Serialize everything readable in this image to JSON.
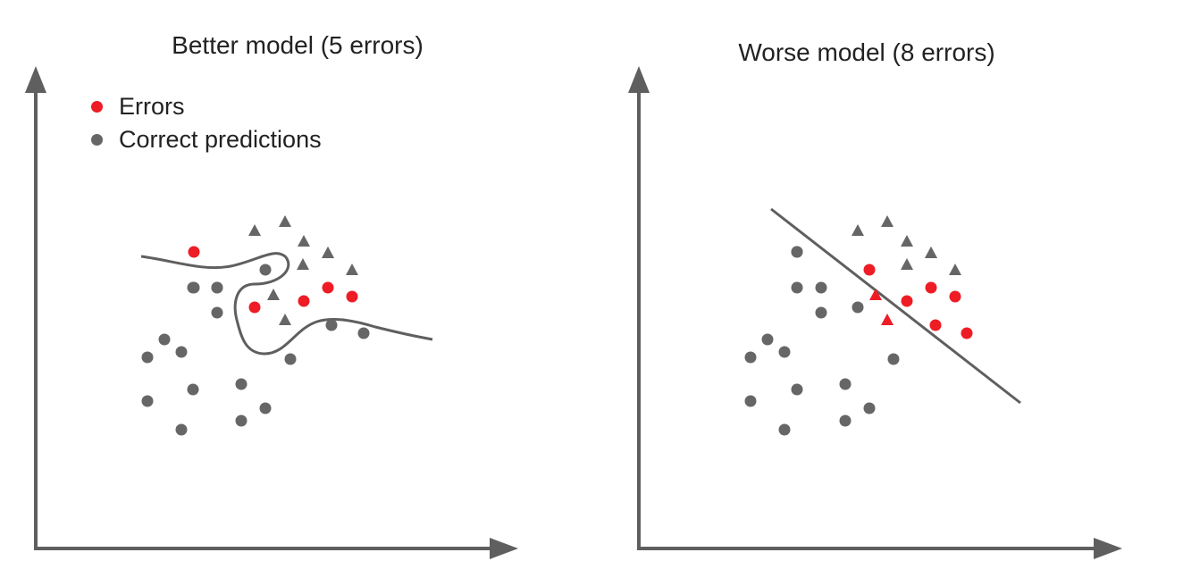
{
  "colors": {
    "axis": "#5f5f5f",
    "correct": "#666666",
    "error": "#ee1c25",
    "boundary": "#5f5f5f"
  },
  "legend": [
    {
      "label": "Errors",
      "color": "#ee1c25"
    },
    {
      "label": "Correct predictions",
      "color": "#666666"
    }
  ],
  "panels": [
    {
      "id": "better",
      "title": "Better model (5 errors)",
      "boundary": "curve",
      "points": [
        {
          "shape": "circle",
          "status": "correct"
        },
        {
          "shape": "circle",
          "status": "correct"
        },
        {
          "shape": "circle",
          "status": "correct"
        },
        {
          "shape": "circle",
          "status": "correct"
        },
        {
          "shape": "circle",
          "status": "correct"
        },
        {
          "shape": "circle",
          "status": "correct"
        },
        {
          "shape": "circle",
          "status": "correct"
        },
        {
          "shape": "circle",
          "status": "correct"
        },
        {
          "shape": "circle",
          "status": "correct"
        },
        {
          "shape": "circle",
          "status": "correct"
        },
        {
          "shape": "circle",
          "status": "correct"
        },
        {
          "shape": "circle",
          "status": "correct"
        },
        {
          "shape": "circle",
          "status": "correct"
        },
        {
          "shape": "circle",
          "status": "correct"
        },
        {
          "shape": "circle",
          "status": "correct"
        },
        {
          "shape": "circle",
          "status": "correct"
        },
        {
          "shape": "circle",
          "status": "correct"
        },
        {
          "shape": "circle",
          "status": "correct"
        },
        {
          "shape": "circle",
          "status": "error"
        },
        {
          "shape": "circle",
          "status": "error"
        },
        {
          "shape": "circle",
          "status": "error"
        },
        {
          "shape": "circle",
          "status": "error"
        },
        {
          "shape": "circle",
          "status": "error"
        },
        {
          "shape": "triangle",
          "status": "correct"
        },
        {
          "shape": "triangle",
          "status": "correct"
        },
        {
          "shape": "triangle",
          "status": "correct"
        },
        {
          "shape": "triangle",
          "status": "correct"
        },
        {
          "shape": "triangle",
          "status": "correct"
        },
        {
          "shape": "triangle",
          "status": "correct"
        },
        {
          "shape": "triangle",
          "status": "correct"
        },
        {
          "shape": "triangle",
          "status": "correct"
        },
        {
          "shape": "triangle",
          "status": "correct"
        }
      ]
    },
    {
      "id": "worse",
      "title": "Worse model (8 errors)",
      "boundary": "line",
      "points": [
        {
          "shape": "circle",
          "status": "correct"
        },
        {
          "shape": "circle",
          "status": "correct"
        },
        {
          "shape": "circle",
          "status": "correct"
        },
        {
          "shape": "circle",
          "status": "correct"
        },
        {
          "shape": "circle",
          "status": "correct"
        },
        {
          "shape": "circle",
          "status": "correct"
        },
        {
          "shape": "circle",
          "status": "correct"
        },
        {
          "shape": "circle",
          "status": "correct"
        },
        {
          "shape": "circle",
          "status": "correct"
        },
        {
          "shape": "circle",
          "status": "correct"
        },
        {
          "shape": "circle",
          "status": "correct"
        },
        {
          "shape": "circle",
          "status": "correct"
        },
        {
          "shape": "circle",
          "status": "correct"
        },
        {
          "shape": "circle",
          "status": "correct"
        },
        {
          "shape": "circle",
          "status": "correct"
        },
        {
          "shape": "circle",
          "status": "correct"
        },
        {
          "shape": "circle",
          "status": "error"
        },
        {
          "shape": "circle",
          "status": "error"
        },
        {
          "shape": "circle",
          "status": "error"
        },
        {
          "shape": "circle",
          "status": "error"
        },
        {
          "shape": "circle",
          "status": "error"
        },
        {
          "shape": "circle",
          "status": "error"
        },
        {
          "shape": "triangle",
          "status": "error"
        },
        {
          "shape": "triangle",
          "status": "error"
        },
        {
          "shape": "triangle",
          "status": "correct"
        },
        {
          "shape": "triangle",
          "status": "correct"
        },
        {
          "shape": "triangle",
          "status": "correct"
        },
        {
          "shape": "triangle",
          "status": "correct"
        },
        {
          "shape": "triangle",
          "status": "correct"
        },
        {
          "shape": "triangle",
          "status": "correct"
        },
        {
          "shape": "triangle",
          "status": "correct"
        }
      ]
    }
  ]
}
